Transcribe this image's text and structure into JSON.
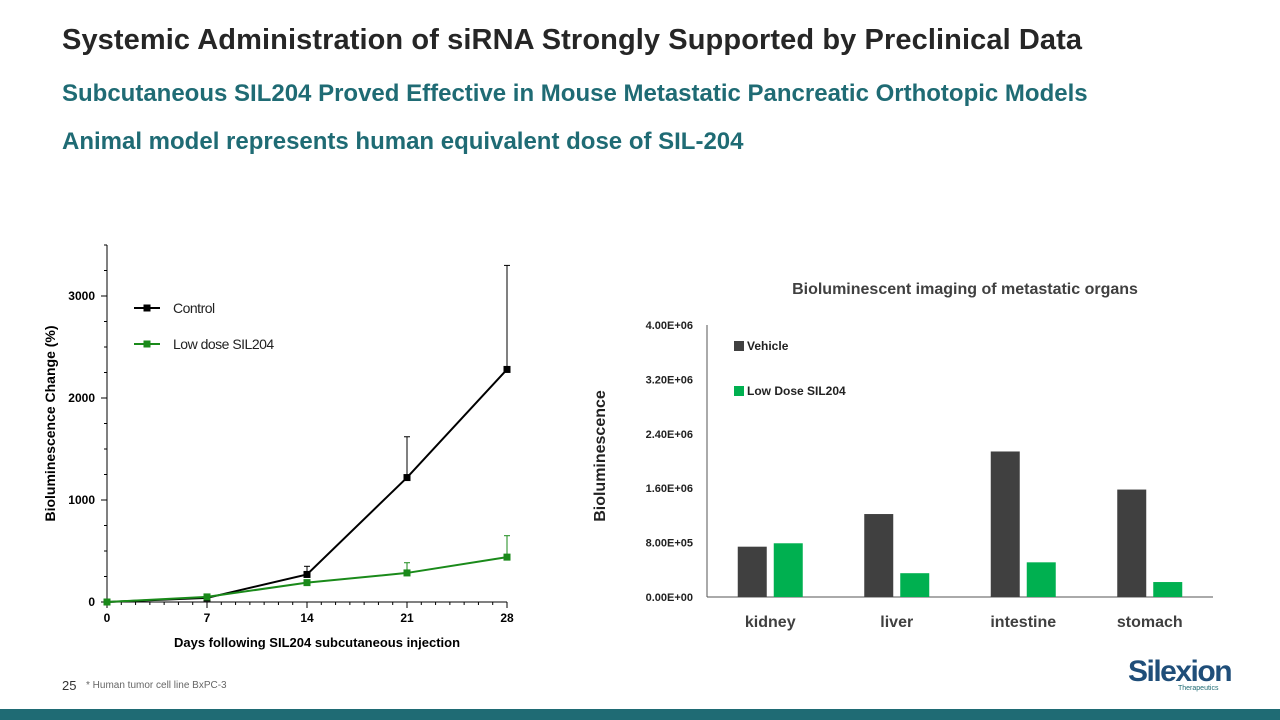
{
  "slide": {
    "title": "Systemic Administration of siRNA Strongly Supported by Preclinical Data",
    "subtitle1": "Subcutaneous SIL204 Proved Effective in Mouse Metastatic Pancreatic Orthotopic Models",
    "subtitle2": "Animal model represents human equivalent dose of SIL-204",
    "page_number": "25",
    "footnote": "* Human tumor cell line BxPC-3",
    "logo_text": "Silexion",
    "logo_subtext": "Therapeutics"
  },
  "colors": {
    "title": "#262626",
    "subtitle": "#1f6b74",
    "control": "#000000",
    "low_dose": "#1a8a1a",
    "vehicle": "#404040",
    "low_dose_bar": "#00b050",
    "bottom_bar": "#1f6b74"
  },
  "chart_data": [
    {
      "type": "line",
      "title": "",
      "xlabel": "Days following SIL204 subcutaneous injection",
      "ylabel": "Bioluminescence Change (%)",
      "x": [
        0,
        7,
        14,
        21,
        28
      ],
      "xlim": [
        0,
        28
      ],
      "ylim": [
        0,
        3500
      ],
      "yticks": [
        0,
        1000,
        2000,
        3000
      ],
      "xticks": [
        0,
        7,
        14,
        21,
        28
      ],
      "series": [
        {
          "name": "Control",
          "color": "#000000",
          "values": [
            0,
            40,
            270,
            1220,
            2280
          ],
          "error": [
            0,
            10,
            80,
            400,
            1020
          ]
        },
        {
          "name": "Low dose SIL204",
          "color": "#1a8a1a",
          "values": [
            0,
            50,
            190,
            285,
            440
          ],
          "error": [
            0,
            10,
            20,
            100,
            210
          ]
        }
      ]
    },
    {
      "type": "bar",
      "title": "Bioluminescent imaging of metastatic organs",
      "xlabel": "",
      "ylabel": "Bioluminescence",
      "categories": [
        "kidney",
        "liver",
        "intestine",
        "stomach"
      ],
      "ylim": [
        0,
        4000000
      ],
      "ytick_labels": [
        "0.00E+00",
        "8.00E+05",
        "1.60E+06",
        "2.40E+06",
        "3.20E+06",
        "4.00E+06"
      ],
      "series": [
        {
          "name": "Vehicle",
          "color": "#404040",
          "values": [
            740000,
            1220000,
            2140000,
            1580000
          ]
        },
        {
          "name": "Low Dose SIL204",
          "color": "#00b050",
          "values": [
            790000,
            350000,
            510000,
            220000
          ]
        }
      ]
    }
  ]
}
